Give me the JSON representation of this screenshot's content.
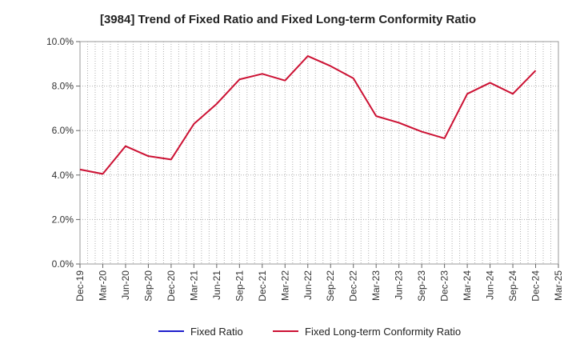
{
  "chart_data": {
    "type": "line",
    "title": "[3984]  Trend of Fixed Ratio and Fixed Long-term Conformity Ratio",
    "xlabel": "",
    "ylabel": "",
    "x_tick_labels": [
      "Dec-19",
      "Mar-20",
      "Jun-20",
      "Sep-20",
      "Dec-20",
      "Mar-21",
      "Jun-21",
      "Sep-21",
      "Dec-21",
      "Mar-22",
      "Jun-22",
      "Sep-22",
      "Dec-22",
      "Mar-23",
      "Jun-23",
      "Sep-23",
      "Dec-23",
      "Mar-24",
      "Jun-24",
      "Sep-24",
      "Dec-24",
      "Mar-25"
    ],
    "y_tick_labels": [
      "0.0%",
      "2.0%",
      "4.0%",
      "6.0%",
      "8.0%",
      "10.0%"
    ],
    "ylim": [
      0,
      10
    ],
    "grid": true,
    "legend_position": "bottom",
    "series": [
      {
        "name": "Fixed Ratio",
        "color": "#1f1fcc",
        "values": []
      },
      {
        "name": "Fixed Long-term Conformity Ratio",
        "color": "#cc1133",
        "x": [
          "Dec-19",
          "Mar-20",
          "Jun-20",
          "Sep-20",
          "Dec-20",
          "Mar-21",
          "Jun-21",
          "Sep-21",
          "Dec-21",
          "Mar-22",
          "Jun-22",
          "Sep-22",
          "Dec-22",
          "Mar-23",
          "Jun-23",
          "Sep-23",
          "Dec-23",
          "Mar-24",
          "Jun-24",
          "Sep-24",
          "Dec-24"
        ],
        "values": [
          4.25,
          4.05,
          5.3,
          4.85,
          4.7,
          6.3,
          7.2,
          8.3,
          8.55,
          8.25,
          9.35,
          8.9,
          8.35,
          6.65,
          6.35,
          5.95,
          5.65,
          7.65,
          8.15,
          7.65,
          8.7
        ]
      }
    ]
  }
}
